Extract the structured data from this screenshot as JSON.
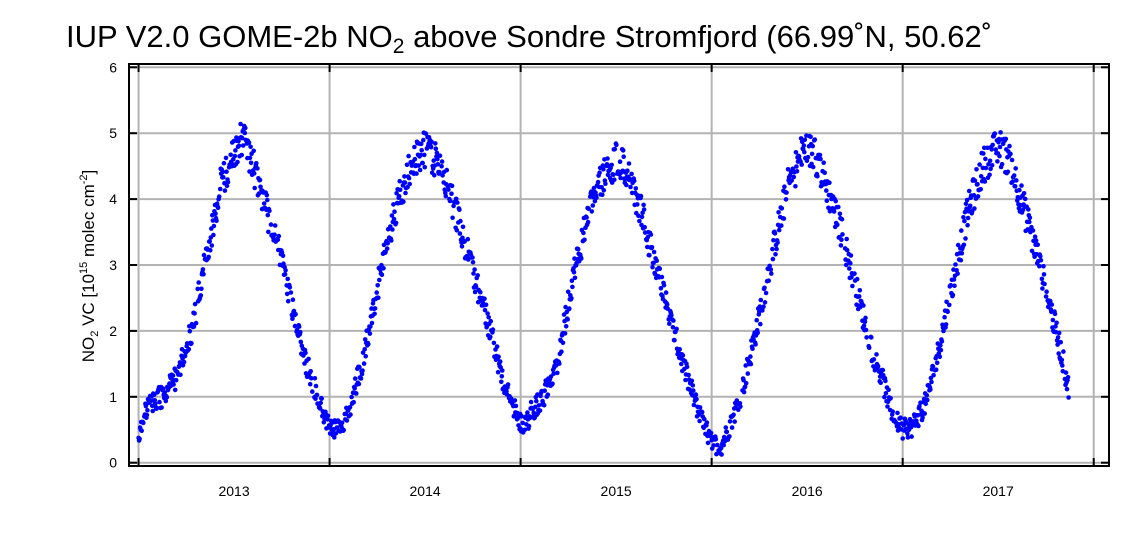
{
  "chart_data": {
    "type": "scatter",
    "title": {
      "pre": "IUP V2.0 GOME-2b NO",
      "sub": "2",
      "post": " above Sondre Stromfjord (66.99˚N, 50.62˚"
    },
    "ylabel": {
      "pre": "NO",
      "sub": "2",
      "mid": " VC  [10",
      "sup1": "15",
      "mid2": " molec cm",
      "sup2": "-2",
      "post": "]"
    },
    "xlabel": "",
    "xlim": [
      2012.45,
      2017.58
    ],
    "ylim": [
      -0.05,
      6.05
    ],
    "yticks": [
      0,
      1,
      2,
      3,
      4,
      5,
      6
    ],
    "xticks": [
      2012.5,
      2013.5,
      2014.5,
      2015.5,
      2016.5,
      2017.5
    ],
    "xtick_labels": [
      {
        "x": 2013.0,
        "label": "2013"
      },
      {
        "x": 2014.0,
        "label": "2014"
      },
      {
        "x": 2015.0,
        "label": "2015"
      },
      {
        "x": 2016.0,
        "label": "2016"
      },
      {
        "x": 2017.0,
        "label": "2017"
      }
    ],
    "grid": true,
    "point_color": "#0000ff",
    "series": [
      {
        "anchors": [
          [
            2012.5,
            0.4
          ],
          [
            2012.55,
            0.9
          ],
          [
            2012.62,
            1.0
          ],
          [
            2012.7,
            1.3
          ],
          [
            2012.78,
            2.0
          ],
          [
            2012.86,
            3.2
          ],
          [
            2012.93,
            4.2
          ],
          [
            2013.0,
            4.7
          ],
          [
            2013.05,
            4.95
          ],
          [
            2013.1,
            4.5
          ],
          [
            2013.15,
            4.0
          ],
          [
            2013.22,
            3.4
          ],
          [
            2013.3,
            2.4
          ],
          [
            2013.38,
            1.5
          ],
          [
            2013.45,
            0.9
          ],
          [
            2013.5,
            0.55
          ],
          [
            2013.55,
            0.5
          ],
          [
            2013.6,
            0.8
          ],
          [
            2013.68,
            1.6
          ],
          [
            2013.76,
            2.8
          ],
          [
            2013.84,
            3.8
          ],
          [
            2013.92,
            4.5
          ],
          [
            2014.0,
            4.75
          ],
          [
            2014.06,
            4.6
          ],
          [
            2014.13,
            4.1
          ],
          [
            2014.2,
            3.4
          ],
          [
            2014.28,
            2.6
          ],
          [
            2014.36,
            1.8
          ],
          [
            2014.42,
            1.1
          ],
          [
            2014.48,
            0.75
          ],
          [
            2014.52,
            0.5
          ],
          [
            2014.56,
            0.8
          ],
          [
            2014.62,
            1.0
          ],
          [
            2014.7,
            1.6
          ],
          [
            2014.76,
            2.6
          ],
          [
            2014.84,
            3.6
          ],
          [
            2014.92,
            4.3
          ],
          [
            2015.0,
            4.6
          ],
          [
            2015.06,
            4.4
          ],
          [
            2015.12,
            3.9
          ],
          [
            2015.2,
            3.1
          ],
          [
            2015.28,
            2.2
          ],
          [
            2015.36,
            1.4
          ],
          [
            2015.44,
            0.7
          ],
          [
            2015.5,
            0.3
          ],
          [
            2015.55,
            0.25
          ],
          [
            2015.6,
            0.6
          ],
          [
            2015.66,
            1.1
          ],
          [
            2015.74,
            2.1
          ],
          [
            2015.82,
            3.2
          ],
          [
            2015.9,
            4.2
          ],
          [
            2015.98,
            4.75
          ],
          [
            2016.04,
            4.7
          ],
          [
            2016.1,
            4.2
          ],
          [
            2016.18,
            3.5
          ],
          [
            2016.26,
            2.6
          ],
          [
            2016.34,
            1.7
          ],
          [
            2016.4,
            1.2
          ],
          [
            2016.45,
            0.7
          ],
          [
            2016.5,
            0.5
          ],
          [
            2016.55,
            0.55
          ],
          [
            2016.62,
            0.9
          ],
          [
            2016.68,
            1.6
          ],
          [
            2016.76,
            2.7
          ],
          [
            2016.84,
            3.8
          ],
          [
            2016.92,
            4.5
          ],
          [
            2017.0,
            4.8
          ],
          [
            2017.06,
            4.6
          ],
          [
            2017.12,
            4.0
          ],
          [
            2017.2,
            3.2
          ],
          [
            2017.26,
            2.5
          ],
          [
            2017.32,
            1.8
          ],
          [
            2017.37,
            1.1
          ]
        ]
      }
    ]
  }
}
